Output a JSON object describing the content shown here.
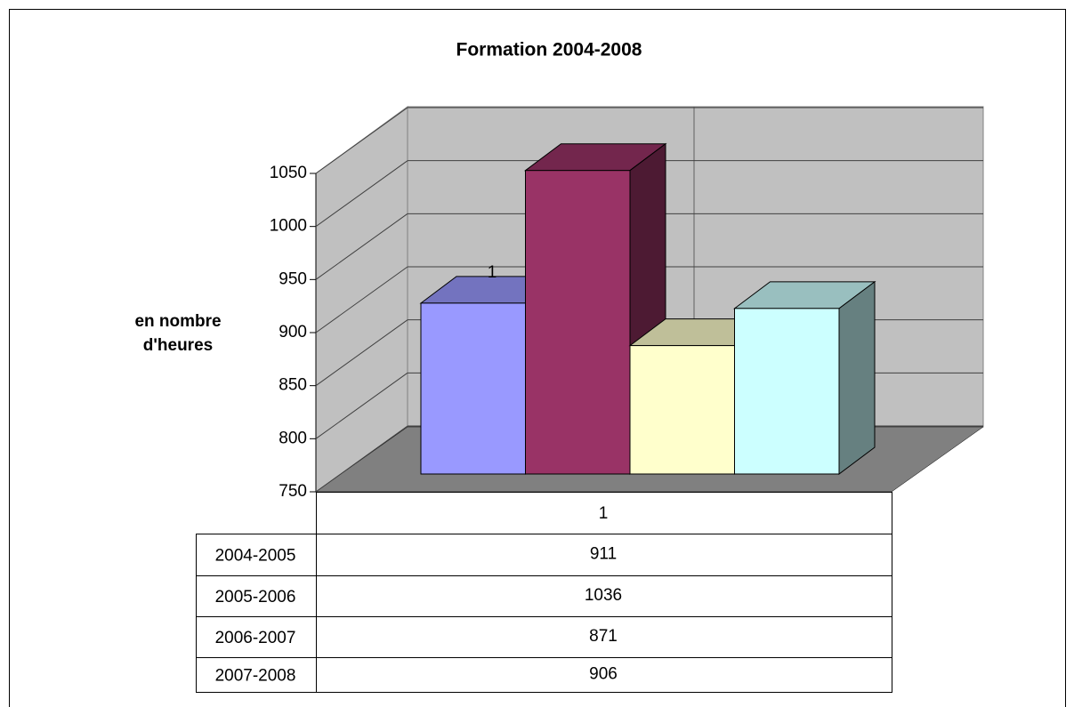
{
  "chart_data": {
    "type": "bar3d",
    "title": "Formation 2004-2008",
    "y_label": "en nombre d'heures",
    "categories": [
      "1"
    ],
    "series": [
      {
        "name": "2004-2005",
        "color": "#9999ff",
        "values": [
          911
        ]
      },
      {
        "name": "2005-2006",
        "color": "#993366",
        "values": [
          1036
        ]
      },
      {
        "name": "2006-2007",
        "color": "#ffffcc",
        "values": [
          871
        ]
      },
      {
        "name": "2007-2008",
        "color": "#ccffff",
        "values": [
          906
        ]
      }
    ],
    "ylim": [
      750,
      1050
    ],
    "yticks": [
      750,
      800,
      850,
      900,
      950,
      1000,
      1050
    ],
    "grid": true,
    "data_table": true
  }
}
